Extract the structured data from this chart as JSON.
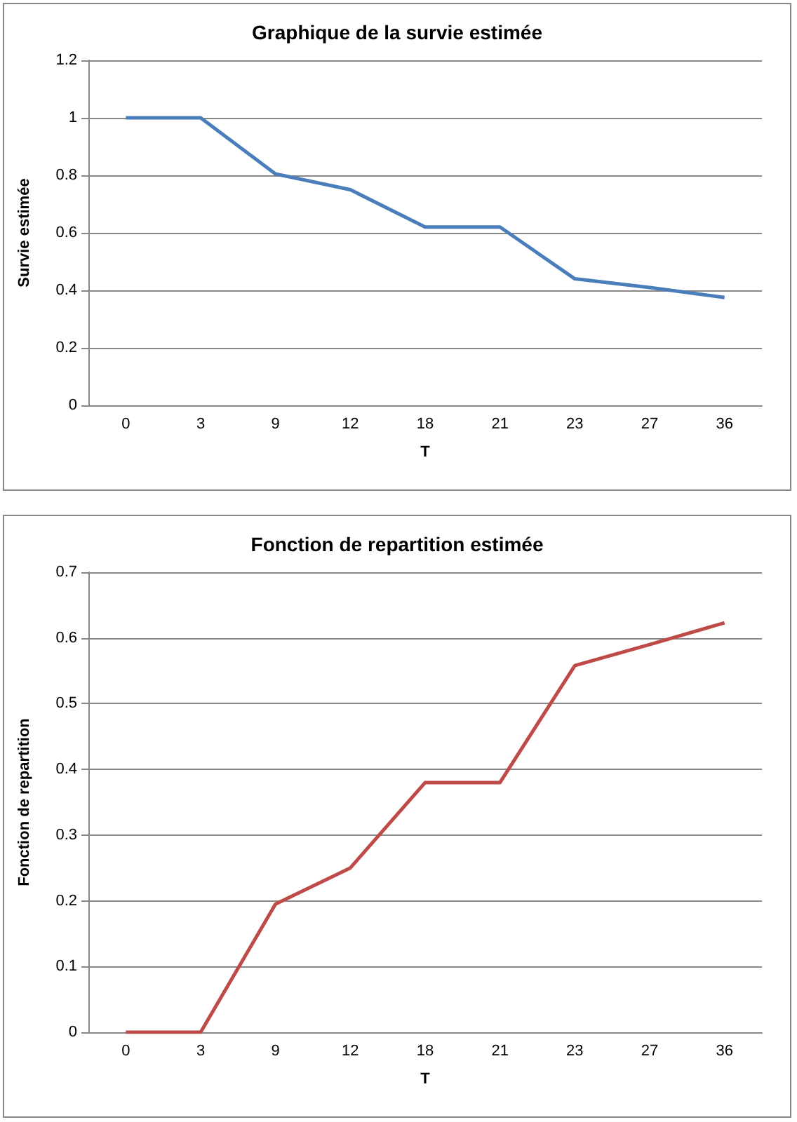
{
  "chart_data": [
    {
      "type": "line",
      "title": "Graphique de la survie estimée",
      "xlabel": "T",
      "ylabel": "Survie estimée",
      "categories": [
        "0",
        "3",
        "9",
        "12",
        "18",
        "21",
        "23",
        "27",
        "36"
      ],
      "series": [
        {
          "color": "#4a7ebb",
          "values": [
            1,
            1,
            0.805,
            0.75,
            0.62,
            0.62,
            0.44,
            0.41,
            0.375
          ]
        }
      ],
      "ylim": [
        0,
        1.2
      ],
      "yticks": [
        0,
        0.2,
        0.4,
        0.6,
        0.8,
        1,
        1.2
      ],
      "grid": "y",
      "marker": "none"
    },
    {
      "type": "line",
      "title": "Fonction de repartition estimée",
      "xlabel": "T",
      "ylabel": "Fonction de repartition",
      "categories": [
        "0",
        "3",
        "9",
        "12",
        "18",
        "21",
        "23",
        "27",
        "36"
      ],
      "series": [
        {
          "color": "#be4b48",
          "values": [
            0,
            0,
            0.195,
            0.25,
            0.38,
            0.38,
            0.558,
            0.59,
            0.623
          ]
        }
      ],
      "ylim": [
        0,
        0.7
      ],
      "yticks": [
        0,
        0.1,
        0.2,
        0.3,
        0.4,
        0.5,
        0.6,
        0.7
      ],
      "grid": "y",
      "marker": "none"
    }
  ]
}
